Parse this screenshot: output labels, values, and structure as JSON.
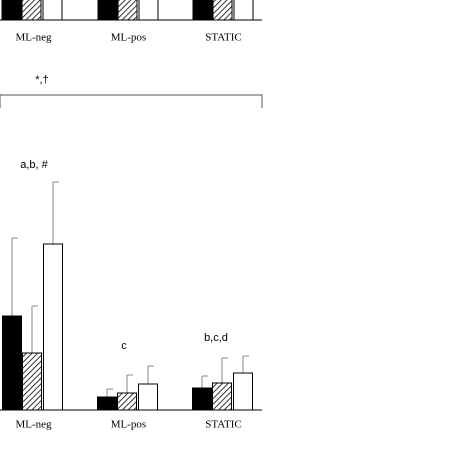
{
  "chart_data": [
    {
      "type": "bar",
      "categories": [
        "ML-neg",
        "ML-pos",
        "STATIC"
      ]
    },
    {
      "type": "bar",
      "categories": [
        "ML-neg",
        "ML-pos",
        "STATIC"
      ],
      "series": [
        {
          "color": "#000000",
          "values": [
            94,
            13,
            22
          ],
          "errors": [
            78,
            8,
            12
          ]
        },
        {
          "color": "#ffffff",
          "pattern": "hatch",
          "values": [
            57,
            17,
            27
          ],
          "errors": [
            47,
            18,
            25
          ]
        },
        {
          "color": "#ffffff",
          "values": [
            166,
            26,
            37
          ],
          "errors": [
            62,
            18,
            17
          ]
        }
      ],
      "ylim": [
        0,
        260
      ],
      "annotations": [
        "a,b, #",
        "c",
        "b,c,d"
      ],
      "bracket_label": "*,†"
    }
  ]
}
